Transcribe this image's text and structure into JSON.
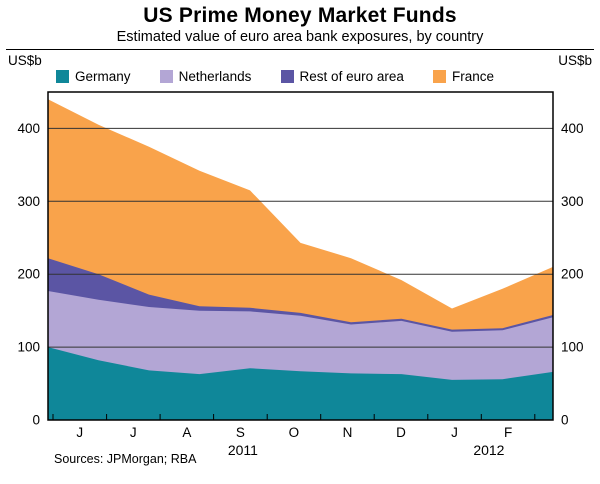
{
  "chart_data": {
    "type": "area",
    "stacked": true,
    "title": "US Prime Money Market Funds",
    "subtitle": "Estimated value of euro area bank exposures, by country",
    "unit_label": "US$b",
    "sources": "Sources: JPMorgan; RBA",
    "ylim": [
      0,
      450
    ],
    "yticks": [
      0,
      100,
      200,
      300,
      400
    ],
    "grid": "horizontal",
    "legend_position": "top",
    "x_tick_labels": [
      {
        "label": "J",
        "x": 0.63
      },
      {
        "label": "J",
        "x": 1.69
      },
      {
        "label": "A",
        "x": 2.75
      },
      {
        "label": "S",
        "x": 3.81
      },
      {
        "label": "O",
        "x": 4.87
      },
      {
        "label": "N",
        "x": 5.93
      },
      {
        "label": "D",
        "x": 6.99
      },
      {
        "label": "J",
        "x": 8.05
      },
      {
        "label": "F",
        "x": 9.11
      }
    ],
    "year_labels": [
      {
        "label": "2011",
        "x": 3.86
      },
      {
        "label": "2012",
        "x": 8.73
      }
    ],
    "series": [
      {
        "name": "Germany",
        "color": "#0f8799",
        "values": [
          100,
          82,
          68,
          63,
          71,
          67,
          64,
          63,
          55,
          56,
          66
        ]
      },
      {
        "name": "Netherlands",
        "color": "#b3a6d5",
        "values": [
          77,
          83,
          87,
          87,
          78,
          76,
          67,
          73,
          66,
          67,
          75
        ]
      },
      {
        "name": "Rest of euro area",
        "color": "#5b55a4",
        "values": [
          45,
          35,
          17,
          6,
          5,
          4,
          3,
          3,
          3,
          3,
          3
        ]
      },
      {
        "name": "France",
        "color": "#f9a34b",
        "values": [
          218,
          205,
          203,
          186,
          161,
          96,
          88,
          53,
          29,
          54,
          66
        ]
      }
    ],
    "stacked_totals": [
      440,
      405,
      375,
      342,
      315,
      243,
      222,
      192,
      153,
      180,
      210
    ]
  }
}
